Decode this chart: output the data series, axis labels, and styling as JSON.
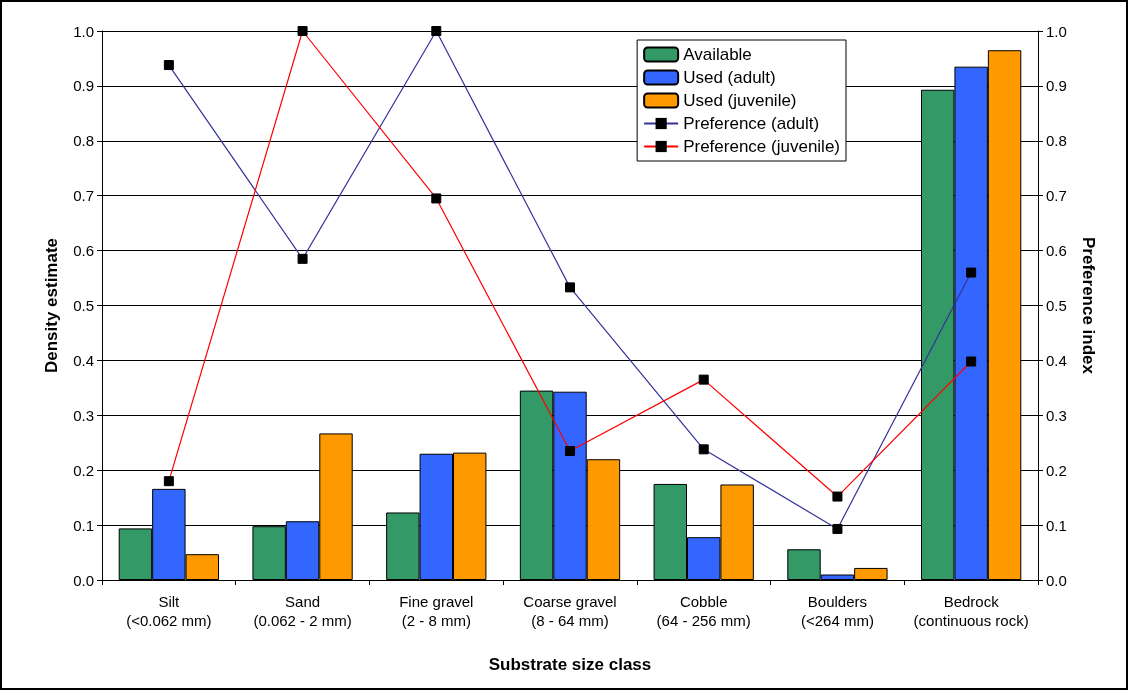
{
  "chart_data": {
    "type": "bar",
    "xlabel": "Substrate size class",
    "ylabel": "Density estimate",
    "y2label": "Preference index",
    "categories": [
      "Silt\n(<0.062 mm)",
      "Sand\n(0.062 - 2 mm)",
      "Fine gravel\n(2 - 8 mm)",
      "Coarse gravel\n(8 - 64 mm)",
      "Cobble\n(64 - 256 mm)",
      "Boulders\n(<264 mm)",
      "Bedrock\n(continuous rock)"
    ],
    "series": [
      {
        "name": "Available",
        "color": "#339966",
        "values": [
          0.094,
          0.098,
          0.123,
          0.345,
          0.175,
          0.056,
          0.893
        ]
      },
      {
        "name": "Used (adult)",
        "color": "#3366ff",
        "values": [
          0.166,
          0.107,
          0.23,
          0.343,
          0.078,
          0.01,
          0.935
        ]
      },
      {
        "name": "Used (juvenile)",
        "color": "#ff9900",
        "values": [
          0.047,
          0.267,
          0.232,
          0.22,
          0.174,
          0.022,
          0.965
        ]
      },
      {
        "name": "Preference (adult)",
        "type": "line",
        "axis": "y2",
        "color": "#333399",
        "values": [
          0.938,
          0.585,
          1.0,
          0.533,
          0.238,
          0.093,
          0.56
        ]
      },
      {
        "name": "Preference (juvenile)",
        "type": "line",
        "axis": "y2",
        "color": "#ff0000",
        "values": [
          0.18,
          1.0,
          0.695,
          0.235,
          0.365,
          0.152,
          0.398
        ]
      }
    ],
    "ylim": [
      0,
      1
    ],
    "yticks": [
      {
        "value": 0,
        "label": "0.0"
      },
      0.1,
      0.2,
      0.3,
      0.4,
      0.5,
      0.6,
      0.7,
      0.8,
      0.9,
      {
        "value": 1,
        "label": "1.0"
      }
    ],
    "y2lim": [
      0,
      1
    ],
    "y2ticks": [
      {
        "value": 0,
        "label": "0.0"
      },
      0.1,
      0.2,
      0.3,
      0.4,
      0.5,
      0.6,
      0.7,
      0.8,
      0.9,
      {
        "value": 1,
        "label": "1.0"
      }
    ],
    "grid": "y",
    "legend": "top right",
    "marker": "square",
    "line_style": "solid"
  }
}
